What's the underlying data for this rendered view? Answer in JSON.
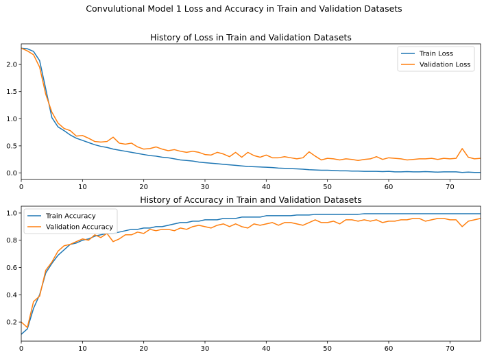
{
  "figure": {
    "title": "Convulutional Model 1 Loss and Accuracy in Train and Validation Datasets"
  },
  "chart_data": [
    {
      "type": "line",
      "title": "History of Loss in Train and Validation Datasets",
      "xlabel": "",
      "ylabel": "",
      "xlim": [
        0,
        75
      ],
      "ylim": [
        -0.12,
        2.38
      ],
      "xticks": [
        0,
        10,
        20,
        30,
        40,
        50,
        60,
        70
      ],
      "yticks": [
        0.0,
        0.5,
        1.0,
        1.5,
        2.0
      ],
      "ytick_labels": [
        "0.0",
        "0.5",
        "1.0",
        "1.5",
        "2.0"
      ],
      "legend": "upper right",
      "grid": false,
      "series": [
        {
          "name": "Train Loss",
          "color": "#1f77b4",
          "x": [
            0,
            1,
            2,
            3,
            4,
            5,
            6,
            7,
            8,
            9,
            10,
            11,
            12,
            13,
            14,
            15,
            16,
            17,
            18,
            19,
            20,
            21,
            22,
            23,
            24,
            25,
            26,
            27,
            28,
            29,
            30,
            31,
            32,
            33,
            34,
            35,
            36,
            37,
            38,
            39,
            40,
            41,
            42,
            43,
            44,
            45,
            46,
            47,
            48,
            49,
            50,
            51,
            52,
            53,
            54,
            55,
            56,
            57,
            58,
            59,
            60,
            61,
            62,
            63,
            64,
            65,
            66,
            67,
            68,
            69,
            70,
            71,
            72,
            73,
            74,
            75
          ],
          "values": [
            2.3,
            2.29,
            2.24,
            2.07,
            1.55,
            1.02,
            0.85,
            0.78,
            0.7,
            0.64,
            0.6,
            0.56,
            0.52,
            0.49,
            0.47,
            0.44,
            0.42,
            0.4,
            0.38,
            0.36,
            0.34,
            0.32,
            0.31,
            0.29,
            0.28,
            0.26,
            0.24,
            0.23,
            0.22,
            0.2,
            0.19,
            0.18,
            0.17,
            0.16,
            0.15,
            0.14,
            0.13,
            0.12,
            0.115,
            0.11,
            0.105,
            0.1,
            0.09,
            0.085,
            0.08,
            0.075,
            0.07,
            0.06,
            0.055,
            0.05,
            0.05,
            0.045,
            0.04,
            0.04,
            0.035,
            0.035,
            0.03,
            0.03,
            0.03,
            0.025,
            0.03,
            0.02,
            0.02,
            0.025,
            0.02,
            0.02,
            0.025,
            0.02,
            0.015,
            0.02,
            0.02,
            0.02,
            0.01,
            0.015,
            0.01,
            0.01
          ]
        },
        {
          "name": "Validation Loss",
          "color": "#ff7f0e",
          "x": [
            0,
            1,
            2,
            3,
            4,
            5,
            6,
            7,
            8,
            9,
            10,
            11,
            12,
            13,
            14,
            15,
            16,
            17,
            18,
            19,
            20,
            21,
            22,
            23,
            24,
            25,
            26,
            27,
            28,
            29,
            30,
            31,
            32,
            33,
            34,
            35,
            36,
            37,
            38,
            39,
            40,
            41,
            42,
            43,
            44,
            45,
            46,
            47,
            48,
            49,
            50,
            51,
            52,
            53,
            54,
            55,
            56,
            57,
            58,
            59,
            60,
            61,
            62,
            63,
            64,
            65,
            66,
            67,
            68,
            69,
            70,
            71,
            72,
            73,
            74,
            75
          ],
          "values": [
            2.3,
            2.25,
            2.18,
            1.95,
            1.45,
            1.12,
            0.92,
            0.82,
            0.78,
            0.68,
            0.69,
            0.64,
            0.58,
            0.57,
            0.58,
            0.66,
            0.55,
            0.53,
            0.55,
            0.48,
            0.44,
            0.45,
            0.48,
            0.44,
            0.41,
            0.43,
            0.4,
            0.38,
            0.4,
            0.38,
            0.34,
            0.33,
            0.38,
            0.35,
            0.3,
            0.38,
            0.29,
            0.38,
            0.32,
            0.29,
            0.33,
            0.28,
            0.28,
            0.3,
            0.28,
            0.26,
            0.28,
            0.39,
            0.31,
            0.24,
            0.27,
            0.26,
            0.24,
            0.26,
            0.25,
            0.23,
            0.25,
            0.26,
            0.3,
            0.25,
            0.28,
            0.27,
            0.26,
            0.24,
            0.25,
            0.26,
            0.26,
            0.27,
            0.25,
            0.27,
            0.26,
            0.27,
            0.45,
            0.29,
            0.26,
            0.27
          ]
        }
      ]
    },
    {
      "type": "line",
      "title": "History of Accuracy in Train and Validation Datasets",
      "xlabel": "",
      "ylabel": "",
      "xlim": [
        0,
        75
      ],
      "ylim": [
        0.06,
        1.05
      ],
      "xticks": [
        0,
        10,
        20,
        30,
        40,
        50,
        60,
        70
      ],
      "yticks": [
        0.2,
        0.4,
        0.6,
        0.8,
        1.0
      ],
      "ytick_labels": [
        "0.2",
        "0.4",
        "0.6",
        "0.8",
        "1.0"
      ],
      "legend": "upper left",
      "grid": false,
      "series": [
        {
          "name": "Train Accuracy",
          "color": "#1f77b4",
          "x": [
            0,
            1,
            2,
            3,
            4,
            5,
            6,
            7,
            8,
            9,
            10,
            11,
            12,
            13,
            14,
            15,
            16,
            17,
            18,
            19,
            20,
            21,
            22,
            23,
            24,
            25,
            26,
            27,
            28,
            29,
            30,
            31,
            32,
            33,
            34,
            35,
            36,
            37,
            38,
            39,
            40,
            41,
            42,
            43,
            44,
            45,
            46,
            47,
            48,
            49,
            50,
            51,
            52,
            53,
            54,
            55,
            56,
            57,
            58,
            59,
            60,
            61,
            62,
            63,
            64,
            65,
            66,
            67,
            68,
            69,
            70,
            71,
            72,
            73,
            74,
            75
          ],
          "values": [
            0.11,
            0.15,
            0.3,
            0.4,
            0.56,
            0.63,
            0.69,
            0.73,
            0.77,
            0.78,
            0.8,
            0.81,
            0.83,
            0.84,
            0.85,
            0.85,
            0.86,
            0.87,
            0.88,
            0.88,
            0.89,
            0.89,
            0.9,
            0.9,
            0.91,
            0.92,
            0.93,
            0.93,
            0.94,
            0.94,
            0.95,
            0.95,
            0.95,
            0.96,
            0.96,
            0.96,
            0.97,
            0.97,
            0.97,
            0.97,
            0.98,
            0.98,
            0.98,
            0.98,
            0.98,
            0.985,
            0.985,
            0.985,
            0.99,
            0.99,
            0.99,
            0.99,
            0.99,
            0.99,
            0.99,
            0.99,
            0.995,
            0.995,
            0.995,
            0.995,
            0.995,
            0.995,
            0.995,
            0.995,
            0.995,
            0.995,
            0.995,
            0.995,
            0.995,
            0.995,
            0.995,
            0.995,
            0.995,
            0.995,
            0.995,
            0.995
          ]
        },
        {
          "name": "Validation Accuracy",
          "color": "#ff7f0e",
          "x": [
            0,
            1,
            2,
            3,
            4,
            5,
            6,
            7,
            8,
            9,
            10,
            11,
            12,
            13,
            14,
            15,
            16,
            17,
            18,
            19,
            20,
            21,
            22,
            23,
            24,
            25,
            26,
            27,
            28,
            29,
            30,
            31,
            32,
            33,
            34,
            35,
            36,
            37,
            38,
            39,
            40,
            41,
            42,
            43,
            44,
            45,
            46,
            47,
            48,
            49,
            50,
            51,
            52,
            53,
            54,
            55,
            56,
            57,
            58,
            59,
            60,
            61,
            62,
            63,
            64,
            65,
            66,
            67,
            68,
            69,
            70,
            71,
            72,
            73,
            74,
            75
          ],
          "values": [
            0.2,
            0.16,
            0.35,
            0.39,
            0.58,
            0.64,
            0.72,
            0.76,
            0.77,
            0.79,
            0.81,
            0.8,
            0.84,
            0.82,
            0.85,
            0.79,
            0.81,
            0.84,
            0.84,
            0.86,
            0.85,
            0.88,
            0.87,
            0.88,
            0.88,
            0.87,
            0.89,
            0.88,
            0.9,
            0.91,
            0.9,
            0.89,
            0.91,
            0.92,
            0.9,
            0.92,
            0.9,
            0.89,
            0.92,
            0.91,
            0.92,
            0.93,
            0.91,
            0.93,
            0.93,
            0.92,
            0.91,
            0.93,
            0.95,
            0.93,
            0.93,
            0.94,
            0.92,
            0.95,
            0.95,
            0.94,
            0.95,
            0.94,
            0.95,
            0.93,
            0.94,
            0.94,
            0.95,
            0.95,
            0.96,
            0.96,
            0.94,
            0.95,
            0.96,
            0.96,
            0.95,
            0.95,
            0.9,
            0.94,
            0.95,
            0.96
          ]
        }
      ]
    }
  ]
}
